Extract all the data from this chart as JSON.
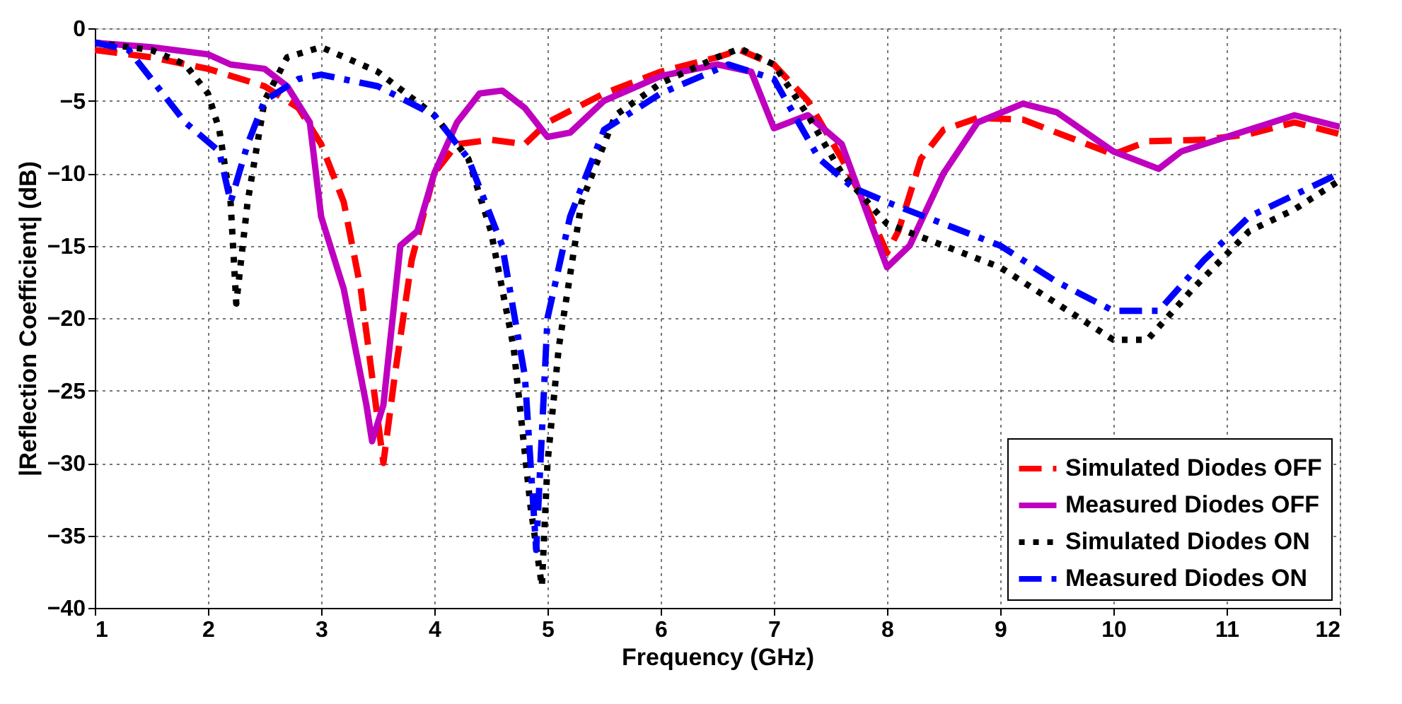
{
  "chart_data": {
    "type": "line",
    "xlabel": "Frequency (GHz)",
    "ylabel": "|Reflection Coefficient| (dB)",
    "xlim": [
      1,
      12
    ],
    "xticks": [
      1,
      2,
      3,
      4,
      5,
      6,
      7,
      8,
      9,
      10,
      11,
      12
    ],
    "ylim": [
      -40,
      0
    ],
    "yticks": [
      -40,
      -35,
      -30,
      -25,
      -20,
      -15,
      -10,
      -5,
      0
    ],
    "grid": true,
    "legend": "bottom right",
    "marker": "none",
    "series": [
      {
        "name": "Simulated Diodes OFF",
        "color": "#ff0000",
        "line_style": "dashed",
        "x": [
          1,
          1.5,
          2,
          2.5,
          2.8,
          3,
          3.2,
          3.35,
          3.45,
          3.55,
          3.65,
          3.8,
          4,
          4.2,
          4.5,
          4.8,
          5,
          5.5,
          6,
          6.5,
          6.7,
          7,
          7.3,
          7.6,
          7.8,
          8,
          8.1,
          8.3,
          8.5,
          8.8,
          9.2,
          9.6,
          10,
          10.3,
          10.8,
          11.2,
          11.6,
          12
        ],
        "values": [
          -1.5,
          -2,
          -2.8,
          -4,
          -5.5,
          -8,
          -12,
          -18,
          -24,
          -30,
          -24,
          -16,
          -10,
          -8,
          -7.7,
          -8,
          -6.5,
          -4.5,
          -3,
          -2,
          -1.5,
          -2.5,
          -5,
          -9,
          -12,
          -15.5,
          -14,
          -9,
          -7,
          -6.2,
          -6.3,
          -7.5,
          -8.7,
          -7.8,
          -7.7,
          -7.3,
          -6.5,
          -7.3
        ]
      },
      {
        "name": "Measured Diodes OFF",
        "color": "#bf00bf",
        "line_style": "solid",
        "x": [
          1,
          1.5,
          2,
          2.2,
          2.5,
          2.7,
          2.9,
          3,
          3.2,
          3.4,
          3.45,
          3.55,
          3.7,
          3.85,
          4,
          4.2,
          4.4,
          4.6,
          4.8,
          5,
          5.2,
          5.5,
          6,
          6.5,
          6.8,
          7,
          7.3,
          7.6,
          8,
          8.2,
          8.5,
          8.8,
          9.2,
          9.5,
          10,
          10.4,
          10.6,
          11,
          11.6,
          12
        ],
        "values": [
          -1,
          -1.3,
          -1.8,
          -2.5,
          -2.8,
          -4,
          -6.5,
          -13,
          -18,
          -26,
          -28.5,
          -26,
          -15,
          -14,
          -10,
          -6.5,
          -4.5,
          -4.3,
          -5.5,
          -7.5,
          -7.2,
          -5,
          -3.3,
          -2.5,
          -3,
          -6.9,
          -6,
          -8,
          -16.5,
          -15,
          -10,
          -6.5,
          -5.2,
          -5.8,
          -8.5,
          -9.7,
          -8.5,
          -7.5,
          -6,
          -6.8
        ]
      },
      {
        "name": "Simulated Diodes ON",
        "color": "#000000",
        "line_style": "dotted",
        "x": [
          1,
          1.5,
          1.8,
          2,
          2.1,
          2.2,
          2.25,
          2.35,
          2.5,
          2.7,
          3,
          3.5,
          4,
          4.3,
          4.5,
          4.7,
          4.85,
          4.95,
          5,
          5.1,
          5.3,
          5.6,
          6,
          6.5,
          6.7,
          7,
          7.3,
          7.6,
          8,
          8.5,
          9,
          9.5,
          10,
          10.3,
          10.7,
          11.2,
          11.6,
          12
        ],
        "values": [
          -1,
          -1.5,
          -2.5,
          -4.5,
          -7,
          -12,
          -19,
          -12,
          -5,
          -2,
          -1.3,
          -3,
          -6,
          -9,
          -14,
          -22,
          -33,
          -38.5,
          -30,
          -22,
          -12,
          -6,
          -3.8,
          -2,
          -1.4,
          -2.5,
          -6,
          -10,
          -13.5,
          -15,
          -16.5,
          -19,
          -21.5,
          -21.5,
          -18,
          -14,
          -12.5,
          -10.5
        ]
      },
      {
        "name": "Measured Diodes ON",
        "color": "#0000ff",
        "line_style": "dashdot",
        "x": [
          1,
          1.3,
          1.5,
          1.8,
          2.1,
          2.2,
          2.35,
          2.5,
          2.8,
          3,
          3.5,
          4,
          4.3,
          4.6,
          4.8,
          4.9,
          5,
          5.2,
          5.5,
          6,
          6.6,
          7,
          7.4,
          7.7,
          8,
          8.5,
          9,
          9.5,
          10,
          10.4,
          10.8,
          11.2,
          11.6,
          12
        ],
        "values": [
          -1,
          -1.5,
          -3.5,
          -6.5,
          -8.5,
          -12,
          -8,
          -5,
          -3.5,
          -3.2,
          -4,
          -6,
          -9,
          -15,
          -24,
          -36,
          -20,
          -13,
          -7,
          -4.5,
          -2.5,
          -3.5,
          -9,
          -11,
          -12,
          -13.5,
          -15,
          -17.5,
          -19.5,
          -19.5,
          -16,
          -13,
          -11.5,
          -10
        ]
      }
    ]
  }
}
